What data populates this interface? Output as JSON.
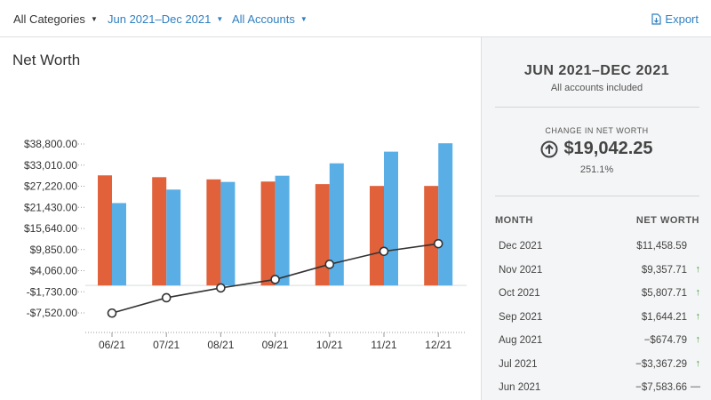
{
  "toolbar": {
    "filters": [
      {
        "label": "All Categories"
      },
      {
        "label": "Jun 2021–Dec 2021"
      },
      {
        "label": "All Accounts"
      }
    ],
    "export_label": "Export"
  },
  "chart_panel": {
    "title": "Net Worth"
  },
  "summary": {
    "range": "JUN 2021–DEC 2021",
    "subtitle": "All accounts included",
    "change_label": "CHANGE IN NET WORTH",
    "change_value": "$19,042.25",
    "change_percent": "251.1%",
    "col_month": "MONTH",
    "col_net_worth": "NET WORTH",
    "rows": [
      {
        "month": "Dec 2021",
        "net_worth": "$11,458.59",
        "trend": ""
      },
      {
        "month": "Nov 2021",
        "net_worth": "$9,357.71",
        "trend": "up"
      },
      {
        "month": "Oct 2021",
        "net_worth": "$5,807.71",
        "trend": "up"
      },
      {
        "month": "Sep 2021",
        "net_worth": "$1,644.21",
        "trend": "up"
      },
      {
        "month": "Aug 2021",
        "net_worth": "−$674.79",
        "trend": "up"
      },
      {
        "month": "Jul 2021",
        "net_worth": "−$3,367.29",
        "trend": "up"
      },
      {
        "month": "Jun 2021",
        "net_worth": "−$7,583.66",
        "trend": "flat"
      }
    ]
  },
  "colors": {
    "debts": "#e0613a",
    "assets": "#5aaee6",
    "net_worth_line": "#333333",
    "link": "#2f7fc1",
    "up_arrow": "#4a9a3c"
  },
  "icons": {
    "caret": "▼",
    "up_arrow": "↑",
    "flat_dash": "—"
  },
  "chart_data": {
    "type": "bar",
    "categories": [
      "06/21",
      "07/21",
      "08/21",
      "09/21",
      "10/21",
      "11/21",
      "12/21"
    ],
    "ytick_labels": [
      "$38,800.00",
      "$33,010.00",
      "$27,220.00",
      "$21,430.00",
      "$15,640.00",
      "$9,850.00",
      "$4,060.00",
      "-$1,730.00",
      "-$7,520.00"
    ],
    "yticks": [
      38800,
      33010,
      27220,
      21430,
      15640,
      9850,
      4060,
      -1730,
      -7520
    ],
    "ylim": [
      -10000,
      40000
    ],
    "bar_baseline": 0,
    "series": [
      {
        "type": "bar",
        "values": [
          30200,
          29700,
          29100,
          28500,
          27800,
          27300,
          27300
        ]
      },
      {
        "type": "bar",
        "values": [
          22600,
          26300,
          28400,
          30100,
          33500,
          36700,
          39000
        ]
      },
      {
        "type": "line",
        "values": [
          -7583.66,
          -3367.29,
          -674.79,
          1644.21,
          5807.71,
          9357.71,
          11458.59
        ]
      }
    ],
    "grid": false,
    "legend": "none"
  }
}
